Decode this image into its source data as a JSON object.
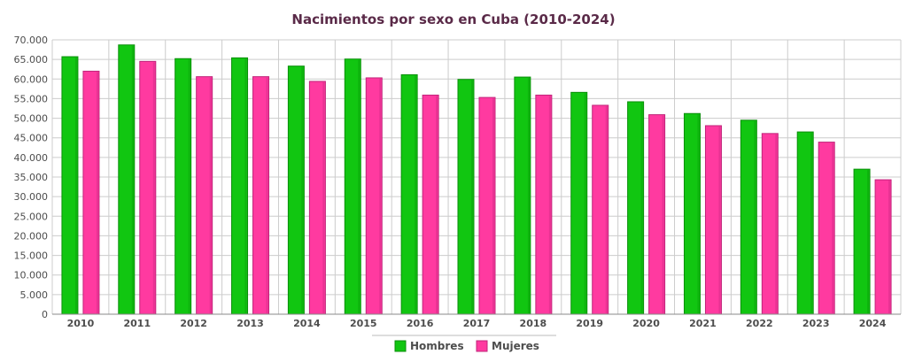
{
  "colors": {
    "title": "#5a2a48",
    "axis_text": "#4d4d4d",
    "grid": "#cccccc",
    "hombres": "#11c611",
    "hombres_dark": "#0a8f0a",
    "mujeres": "#ff3aa0",
    "mujeres_dark": "#c0247a"
  },
  "chart_data": {
    "type": "bar",
    "title": "Nacimientos por sexo en Cuba (2010-2024)",
    "xlabel": "",
    "ylabel": "",
    "categories": [
      "2010",
      "2011",
      "2012",
      "2013",
      "2014",
      "2015",
      "2016",
      "2017",
      "2018",
      "2019",
      "2020",
      "2021",
      "2022",
      "2023",
      "2024"
    ],
    "series": [
      {
        "name": "Hombres",
        "color_key": "hombres",
        "values": [
          65700,
          68700,
          65200,
          65400,
          63300,
          65100,
          61100,
          59900,
          60500,
          56600,
          54200,
          51200,
          49500,
          46500,
          37000
        ]
      },
      {
        "name": "Mujeres",
        "color_key": "mujeres",
        "values": [
          62000,
          64500,
          60600,
          60600,
          59400,
          60300,
          55900,
          55300,
          55900,
          53300,
          50900,
          48100,
          46100,
          43900,
          34300
        ]
      }
    ],
    "ylim": [
      0,
      70000
    ],
    "y_ticks": [
      0,
      5000,
      10000,
      15000,
      20000,
      25000,
      30000,
      35000,
      40000,
      45000,
      50000,
      55000,
      60000,
      65000,
      70000
    ],
    "y_tick_labels": [
      "0",
      "5.000",
      "10.000",
      "15.000",
      "20.000",
      "25.000",
      "30.000",
      "35.000",
      "40.000",
      "45.000",
      "50.000",
      "55.000",
      "60.000",
      "65.000",
      "70.000"
    ],
    "grid": true,
    "legend_position": "bottom-center"
  }
}
